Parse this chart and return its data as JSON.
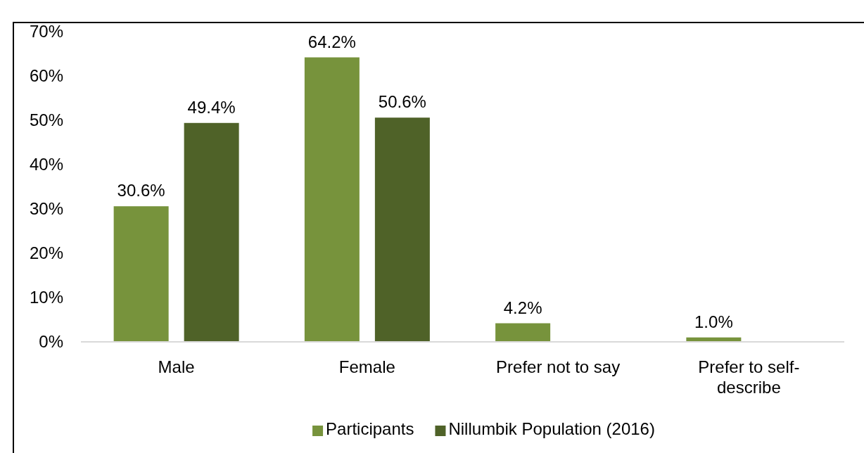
{
  "chart_data": {
    "type": "bar",
    "categories": [
      "Male",
      "Female",
      "Prefer not to say",
      "Prefer to self-describe"
    ],
    "series": [
      {
        "name": "Participants",
        "color": "#77933c",
        "values": [
          30.6,
          64.2,
          4.2,
          1.0
        ],
        "value_labels": [
          "30.6%",
          "64.2%",
          "4.2%",
          "1.0%"
        ]
      },
      {
        "name": "Nillumbik Population (2016)",
        "color": "#4f6228",
        "values": [
          49.4,
          50.6,
          null,
          null
        ],
        "value_labels": [
          "49.4%",
          "50.6%",
          null,
          null
        ]
      }
    ],
    "ylim": [
      0,
      70
    ],
    "yticks": [
      {
        "value": 0,
        "label": "0%"
      },
      {
        "value": 10,
        "label": "10%"
      },
      {
        "value": 20,
        "label": "20%"
      },
      {
        "value": 30,
        "label": "30%"
      },
      {
        "value": 40,
        "label": "40%"
      },
      {
        "value": 50,
        "label": "50%"
      },
      {
        "value": 60,
        "label": "60%"
      },
      {
        "value": 70,
        "label": "70%"
      }
    ],
    "grid": false,
    "legend": "bottom"
  }
}
